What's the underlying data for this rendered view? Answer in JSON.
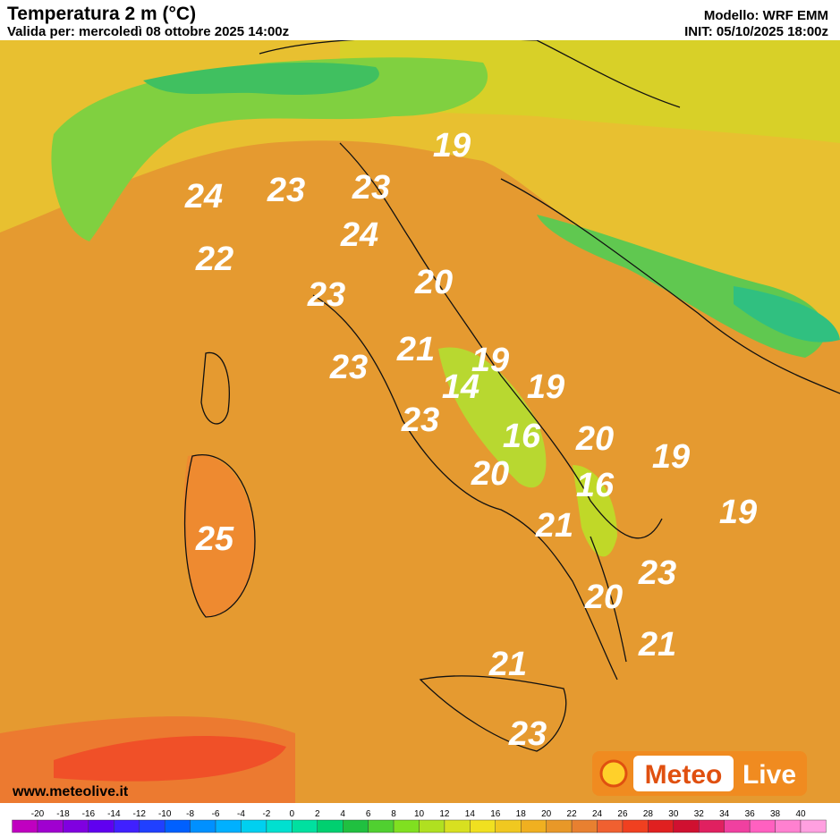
{
  "header": {
    "title": "Temperatura 2 m (°C)",
    "valid": "Valida per: mercoledì 08 ottobre 2025 14:00z",
    "model": "Modello: WRF EMM",
    "init": "INIT: 05/10/2025 18:00z"
  },
  "labels": [
    19,
    24,
    23,
    23,
    24,
    22,
    20,
    23,
    21,
    23,
    19,
    14,
    19,
    23,
    16,
    20,
    19,
    20,
    16,
    19,
    21,
    25,
    23,
    20,
    21,
    21,
    23
  ],
  "colorbar": {
    "ticks": [
      -20,
      -18,
      -16,
      -14,
      -12,
      -10,
      -8,
      -6,
      -4,
      -2,
      0,
      2,
      4,
      6,
      8,
      10,
      12,
      14,
      16,
      18,
      20,
      22,
      24,
      26,
      28,
      30,
      32,
      34,
      36,
      38,
      40
    ],
    "colors": [
      "#c000c0",
      "#a000d0",
      "#8000e0",
      "#6000f0",
      "#4020ff",
      "#2040ff",
      "#0060ff",
      "#0090ff",
      "#00b0ff",
      "#00d0f0",
      "#00e0d0",
      "#00e0a0",
      "#00d070",
      "#20c040",
      "#50d030",
      "#80e020",
      "#b0e020",
      "#d8e020",
      "#f0e020",
      "#f0c820",
      "#f0b020",
      "#e89828",
      "#e88030",
      "#f06030",
      "#f04020",
      "#e02020",
      "#d01030",
      "#e02060",
      "#f040a0",
      "#ff60c0",
      "#ff80d0",
      "#ffa0e0"
    ]
  },
  "footer": {
    "website": "www.meteolive.it",
    "logo_a": "Meteo",
    "logo_b": "Live"
  }
}
